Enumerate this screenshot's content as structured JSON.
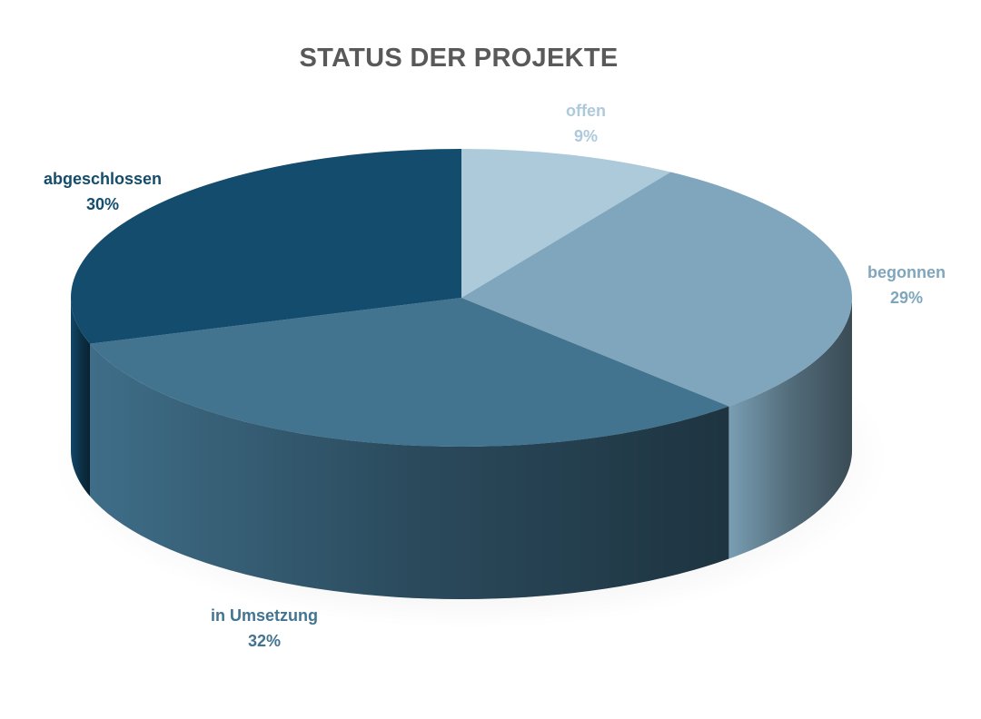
{
  "chart_data": {
    "type": "pie",
    "title": "STATUS DER PROJEKTE",
    "slices": [
      {
        "label": "offen",
        "value": 9,
        "percent_label": "9%",
        "color": "#adcadb",
        "label_color": "#adcadb"
      },
      {
        "label": "begonnen",
        "value": 29,
        "percent_label": "29%",
        "color": "#7fa6bc",
        "label_color": "#7fa6bc"
      },
      {
        "label": "in Umsetzung",
        "value": 32,
        "percent_label": "32%",
        "color": "#42738f",
        "label_color": "#42738f"
      },
      {
        "label": "abgeschlossen",
        "value": 30,
        "percent_label": "30%",
        "color": "#134c6d",
        "label_color": "#134c6d"
      }
    ],
    "start_angle": "12 o'clock",
    "direction": "clockwise",
    "style": "3d"
  }
}
